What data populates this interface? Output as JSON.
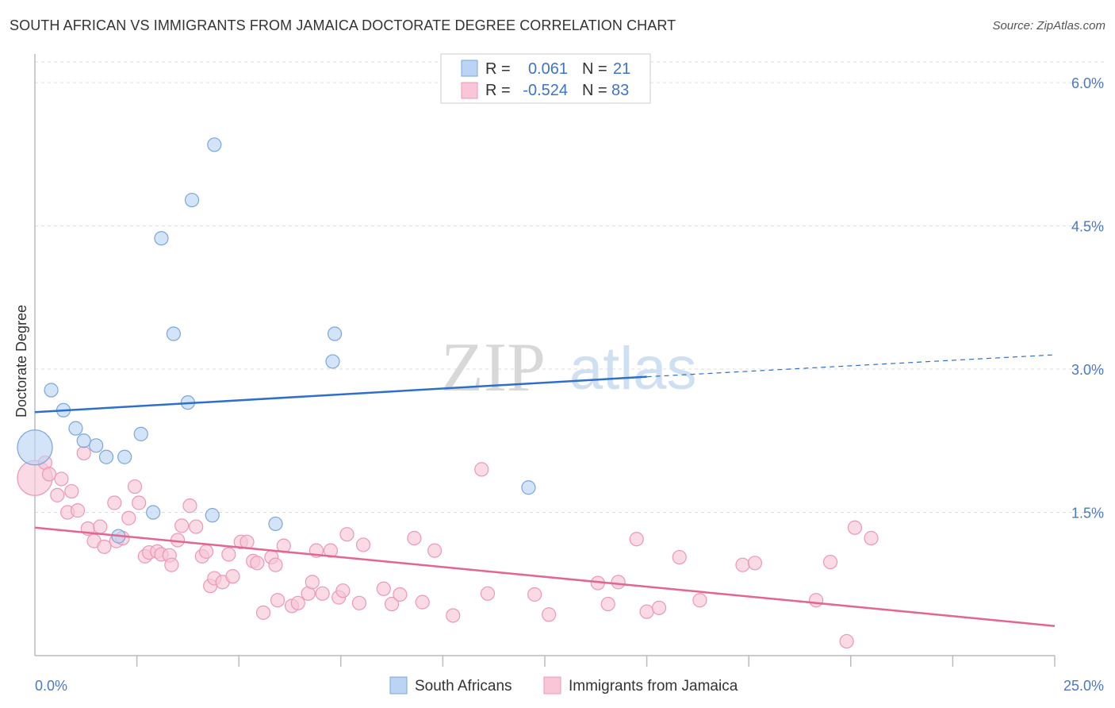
{
  "header": {
    "title": "SOUTH AFRICAN VS IMMIGRANTS FROM JAMAICA DOCTORATE DEGREE CORRELATION CHART",
    "source": "Source: ZipAtlas.com"
  },
  "watermark": {
    "zip": "ZIP",
    "atlas": "atlas"
  },
  "colors": {
    "blue_fill": "#bcd4f4",
    "blue_stroke": "#7aa6e0",
    "blue_line": "#2f6fcc",
    "pink_fill": "#f8c6d6",
    "pink_stroke": "#ec98b4",
    "pink_line": "#e2668f",
    "grid": "#dddddd",
    "axis_label": "#4a78c8"
  },
  "chart_data": {
    "type": "scatter",
    "title": "SOUTH AFRICAN VS IMMIGRANTS FROM JAMAICA DOCTORATE DEGREE CORRELATION CHART",
    "xlabel": "",
    "ylabel": "Doctorate Degree",
    "xlim": [
      0,
      25
    ],
    "ylim": [
      0,
      6.3
    ],
    "x_tick_labels": {
      "left": "0.0%",
      "right": "25.0%"
    },
    "y_ticks": [
      {
        "value": 1.5,
        "label": "1.5%"
      },
      {
        "value": 3.0,
        "label": "3.0%"
      },
      {
        "value": 4.5,
        "label": "4.5%"
      },
      {
        "value": 6.0,
        "label": "6.0%"
      }
    ],
    "grid": true,
    "legend_position": "top-center",
    "legend": [
      {
        "series": "South Africans",
        "r_label": "R =",
        "r_value": "0.061",
        "n_label": "N =",
        "n_value": "21"
      },
      {
        "series": "Immigrants from Jamaica",
        "r_label": "R =",
        "r_value": "-0.524",
        "n_label": "N =",
        "n_value": "83"
      }
    ],
    "series": [
      {
        "name": "South Africans",
        "color": "blue",
        "points": [
          {
            "x": 0.0,
            "y": 2.18,
            "big": true
          },
          {
            "x": 0.4,
            "y": 2.78
          },
          {
            "x": 0.7,
            "y": 2.57
          },
          {
            "x": 1.0,
            "y": 2.38
          },
          {
            "x": 1.2,
            "y": 2.25
          },
          {
            "x": 1.5,
            "y": 2.2
          },
          {
            "x": 1.75,
            "y": 2.08
          },
          {
            "x": 2.2,
            "y": 2.08
          },
          {
            "x": 2.6,
            "y": 2.32
          },
          {
            "x": 2.9,
            "y": 1.5
          },
          {
            "x": 3.1,
            "y": 4.37
          },
          {
            "x": 3.4,
            "y": 3.37
          },
          {
            "x": 3.75,
            "y": 2.65
          },
          {
            "x": 3.85,
            "y": 4.77
          },
          {
            "x": 4.4,
            "y": 5.35
          },
          {
            "x": 4.35,
            "y": 1.47
          },
          {
            "x": 5.9,
            "y": 1.38
          },
          {
            "x": 7.35,
            "y": 3.37
          },
          {
            "x": 7.3,
            "y": 3.08
          },
          {
            "x": 12.1,
            "y": 1.76
          },
          {
            "x": 2.05,
            "y": 1.25
          }
        ],
        "trend": {
          "x0": 0,
          "y0": 2.55,
          "x1": 15,
          "y1": 2.92,
          "dash_to_x": 25,
          "dash_to_y": 3.15
        }
      },
      {
        "name": "Immigrants from Jamaica",
        "color": "pink",
        "points": [
          {
            "x": 0.0,
            "y": 1.86,
            "big": true
          },
          {
            "x": 0.25,
            "y": 2.02
          },
          {
            "x": 0.35,
            "y": 1.9
          },
          {
            "x": 0.55,
            "y": 1.68
          },
          {
            "x": 0.65,
            "y": 1.85
          },
          {
            "x": 0.9,
            "y": 1.72
          },
          {
            "x": 0.8,
            "y": 1.5
          },
          {
            "x": 1.05,
            "y": 1.52
          },
          {
            "x": 1.2,
            "y": 2.12
          },
          {
            "x": 1.3,
            "y": 1.33
          },
          {
            "x": 1.45,
            "y": 1.2
          },
          {
            "x": 1.6,
            "y": 1.35
          },
          {
            "x": 1.7,
            "y": 1.14
          },
          {
            "x": 1.95,
            "y": 1.6
          },
          {
            "x": 2.0,
            "y": 1.2
          },
          {
            "x": 2.15,
            "y": 1.23
          },
          {
            "x": 2.3,
            "y": 1.44
          },
          {
            "x": 2.45,
            "y": 1.77
          },
          {
            "x": 2.55,
            "y": 1.6
          },
          {
            "x": 2.7,
            "y": 1.04
          },
          {
            "x": 2.8,
            "y": 1.08
          },
          {
            "x": 3.0,
            "y": 1.09
          },
          {
            "x": 3.1,
            "y": 1.06
          },
          {
            "x": 3.3,
            "y": 1.05
          },
          {
            "x": 3.35,
            "y": 0.95
          },
          {
            "x": 3.5,
            "y": 1.21
          },
          {
            "x": 3.6,
            "y": 1.36
          },
          {
            "x": 3.8,
            "y": 1.57
          },
          {
            "x": 3.95,
            "y": 1.35
          },
          {
            "x": 4.1,
            "y": 1.04
          },
          {
            "x": 4.2,
            "y": 1.09
          },
          {
            "x": 4.3,
            "y": 0.73
          },
          {
            "x": 4.4,
            "y": 0.81
          },
          {
            "x": 4.6,
            "y": 0.77
          },
          {
            "x": 4.75,
            "y": 1.06
          },
          {
            "x": 4.85,
            "y": 0.83
          },
          {
            "x": 5.05,
            "y": 1.19
          },
          {
            "x": 5.2,
            "y": 1.19
          },
          {
            "x": 5.35,
            "y": 0.99
          },
          {
            "x": 5.45,
            "y": 0.97
          },
          {
            "x": 5.6,
            "y": 0.45
          },
          {
            "x": 5.8,
            "y": 1.03
          },
          {
            "x": 5.9,
            "y": 0.95
          },
          {
            "x": 5.95,
            "y": 0.58
          },
          {
            "x": 6.1,
            "y": 1.15
          },
          {
            "x": 6.3,
            "y": 0.52
          },
          {
            "x": 6.45,
            "y": 0.55
          },
          {
            "x": 6.7,
            "y": 0.65
          },
          {
            "x": 6.8,
            "y": 0.77
          },
          {
            "x": 6.9,
            "y": 1.1
          },
          {
            "x": 7.05,
            "y": 0.65
          },
          {
            "x": 7.25,
            "y": 1.1
          },
          {
            "x": 7.45,
            "y": 0.61
          },
          {
            "x": 7.55,
            "y": 0.68
          },
          {
            "x": 7.65,
            "y": 1.27
          },
          {
            "x": 7.95,
            "y": 0.55
          },
          {
            "x": 8.05,
            "y": 1.16
          },
          {
            "x": 8.55,
            "y": 0.7
          },
          {
            "x": 8.75,
            "y": 0.54
          },
          {
            "x": 8.95,
            "y": 0.64
          },
          {
            "x": 9.3,
            "y": 1.23
          },
          {
            "x": 9.5,
            "y": 0.56
          },
          {
            "x": 9.8,
            "y": 1.1
          },
          {
            "x": 10.25,
            "y": 0.42
          },
          {
            "x": 11.1,
            "y": 0.65
          },
          {
            "x": 10.95,
            "y": 1.95
          },
          {
            "x": 12.25,
            "y": 0.64
          },
          {
            "x": 12.6,
            "y": 0.43
          },
          {
            "x": 13.8,
            "y": 0.76
          },
          {
            "x": 14.05,
            "y": 0.54
          },
          {
            "x": 14.3,
            "y": 0.77
          },
          {
            "x": 14.75,
            "y": 1.22
          },
          {
            "x": 15.0,
            "y": 0.46
          },
          {
            "x": 15.3,
            "y": 0.5
          },
          {
            "x": 15.8,
            "y": 1.03
          },
          {
            "x": 16.3,
            "y": 0.58
          },
          {
            "x": 17.35,
            "y": 0.95
          },
          {
            "x": 17.65,
            "y": 0.97
          },
          {
            "x": 19.15,
            "y": 0.58
          },
          {
            "x": 19.5,
            "y": 0.98
          },
          {
            "x": 19.9,
            "y": 0.15
          },
          {
            "x": 20.1,
            "y": 1.34
          },
          {
            "x": 20.5,
            "y": 1.23
          }
        ],
        "trend": {
          "x0": 0,
          "y0": 1.34,
          "x1": 25,
          "y1": 0.31
        }
      }
    ]
  },
  "bottom_legend": [
    {
      "label": "South Africans",
      "color": "blue"
    },
    {
      "label": "Immigrants from Jamaica",
      "color": "pink"
    }
  ]
}
